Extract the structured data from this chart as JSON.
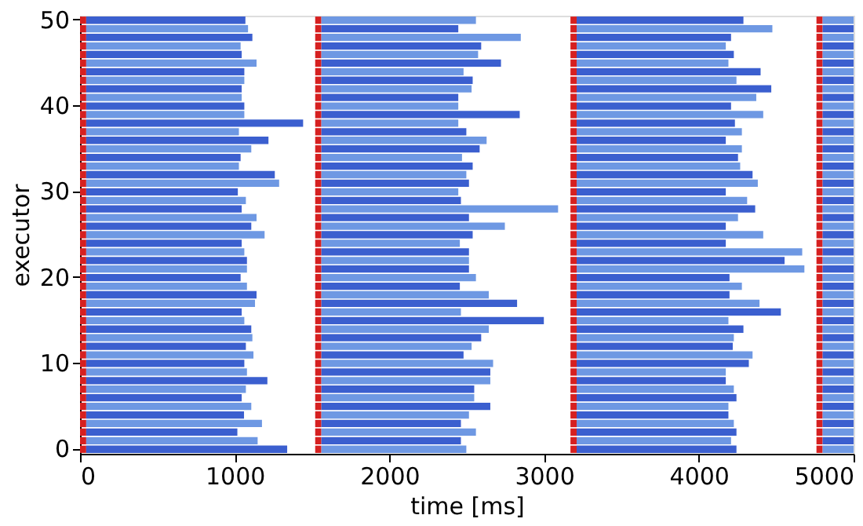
{
  "chart_data": {
    "type": "bar",
    "orientation": "horizontal",
    "xlabel": "time [ms]",
    "ylabel": "executor",
    "categories": [
      "50",
      null,
      null,
      null,
      null,
      null,
      null,
      null,
      null,
      null,
      "40",
      null,
      null,
      null,
      null,
      null,
      null,
      null,
      null,
      null,
      "30",
      null,
      null,
      null,
      null,
      null,
      null,
      null,
      null,
      null,
      "20",
      null,
      null,
      null,
      null,
      null,
      null,
      null,
      null,
      null,
      "10",
      null,
      null,
      null,
      null,
      null,
      null,
      null,
      null,
      null,
      "0"
    ],
    "xlim": [
      0,
      5000
    ],
    "xticks": [
      0,
      1000,
      2000,
      3000,
      4000,
      5000
    ],
    "series": [
      {
        "color": "#d62020",
        "base": [
          0,
          0,
          0,
          0,
          0,
          0,
          0,
          0,
          0,
          0,
          0,
          0,
          0,
          0,
          0,
          0,
          0,
          0,
          0,
          0,
          0,
          0,
          0,
          0,
          0,
          0,
          0,
          0,
          0,
          0,
          0,
          0,
          0,
          0,
          0,
          0,
          0,
          0,
          0,
          0,
          0,
          0,
          0,
          0,
          0,
          0,
          0,
          0,
          0,
          0,
          0
        ],
        "values": [
          40,
          40,
          40,
          40,
          40,
          40,
          40,
          40,
          40,
          40,
          40,
          40,
          40,
          40,
          40,
          40,
          40,
          40,
          40,
          40,
          40,
          40,
          40,
          40,
          40,
          40,
          40,
          40,
          40,
          40,
          40,
          40,
          40,
          40,
          40,
          40,
          40,
          40,
          40,
          40,
          40,
          40,
          40,
          40,
          40,
          40,
          40,
          40,
          40,
          40,
          40
        ]
      },
      {
        "colors": [
          "#3b5fcf",
          "#6e98e3",
          "#3b5fcf",
          "#6e98e3",
          "#3b5fcf",
          "#6e98e3",
          "#3b5fcf",
          "#6e98e3",
          "#3b5fcf",
          "#6e98e3",
          "#3b5fcf",
          "#6e98e3",
          "#3b5fcf",
          "#6e98e3",
          "#3b5fcf",
          "#6e98e3",
          "#3b5fcf",
          "#6e98e3",
          "#3b5fcf",
          "#6e98e3",
          "#3b5fcf",
          "#6e98e3",
          "#3b5fcf",
          "#6e98e3",
          "#3b5fcf",
          "#6e98e3",
          "#3b5fcf",
          "#6e98e3",
          "#3b5fcf",
          "#6e98e3",
          "#3b5fcf",
          "#6e98e3",
          "#3b5fcf",
          "#6e98e3",
          "#3b5fcf",
          "#6e98e3",
          "#3b5fcf",
          "#6e98e3",
          "#3b5fcf",
          "#6e98e3",
          "#3b5fcf",
          "#6e98e3",
          "#3b5fcf",
          "#6e98e3",
          "#3b5fcf",
          "#6e98e3",
          "#3b5fcf",
          "#6e98e3",
          "#3b5fcf",
          "#6e98e3",
          "#3b5fcf"
        ],
        "base": [
          40,
          40,
          40,
          40,
          40,
          40,
          40,
          40,
          40,
          40,
          40,
          40,
          40,
          40,
          40,
          40,
          40,
          40,
          40,
          40,
          40,
          40,
          40,
          40,
          40,
          40,
          40,
          40,
          40,
          40,
          40,
          40,
          40,
          40,
          40,
          40,
          40,
          40,
          40,
          40,
          40,
          40,
          40,
          40,
          40,
          40,
          40,
          40,
          40,
          40,
          40
        ],
        "values": [
          1029,
          1046,
          1074,
          998,
          1005,
          1101,
          1022,
          1022,
          1005,
          1005,
          1022,
          1022,
          1402,
          987,
          1178,
          1067,
          998,
          987,
          1219,
          1247,
          980,
          1032,
          1005,
          1101,
          1067,
          1153,
          1005,
          1022,
          1039,
          1039,
          998,
          1039,
          1101,
          1091,
          1005,
          1022,
          1067,
          1074,
          1032,
          1081,
          1022,
          1039,
          1171,
          1032,
          1005,
          1067,
          1020,
          1136,
          977,
          1108,
          1299
        ]
      },
      {
        "color": "#d62020",
        "base": [
          1520,
          1520,
          1520,
          1520,
          1520,
          1520,
          1520,
          1520,
          1520,
          1520,
          1520,
          1520,
          1520,
          1520,
          1520,
          1520,
          1520,
          1520,
          1520,
          1520,
          1520,
          1520,
          1520,
          1520,
          1520,
          1520,
          1520,
          1520,
          1520,
          1520,
          1520,
          1520,
          1520,
          1520,
          1520,
          1520,
          1520,
          1520,
          1520,
          1520,
          1520,
          1520,
          1520,
          1520,
          1520,
          1520,
          1520,
          1520,
          1520,
          1520,
          1520
        ],
        "values": [
          40,
          40,
          40,
          40,
          40,
          40,
          40,
          40,
          40,
          40,
          40,
          40,
          40,
          40,
          40,
          40,
          40,
          40,
          40,
          40,
          40,
          40,
          40,
          40,
          40,
          40,
          40,
          40,
          40,
          40,
          40,
          40,
          40,
          40,
          40,
          40,
          40,
          40,
          40,
          40,
          40,
          40,
          40,
          40,
          40,
          40,
          40,
          40,
          40,
          40,
          40
        ]
      },
      {
        "colors": [
          "#6e98e3",
          "#3b5fcf",
          "#6e98e3",
          "#3b5fcf",
          "#6e98e3",
          "#3b5fcf",
          "#6e98e3",
          "#3b5fcf",
          "#6e98e3",
          "#3b5fcf",
          "#6e98e3",
          "#3b5fcf",
          "#6e98e3",
          "#3b5fcf",
          "#6e98e3",
          "#3b5fcf",
          "#6e98e3",
          "#3b5fcf",
          "#6e98e3",
          "#3b5fcf",
          "#6e98e3",
          "#3b5fcf",
          "#6e98e3",
          "#3b5fcf",
          "#6e98e3",
          "#3b5fcf",
          "#6e98e3",
          "#3b5fcf",
          "#6e98e3",
          "#3b5fcf",
          "#6e98e3",
          "#3b5fcf",
          "#6e98e3",
          "#3b5fcf",
          "#6e98e3",
          "#3b5fcf",
          "#6e98e3",
          "#3b5fcf",
          "#6e98e3",
          "#3b5fcf",
          "#6e98e3",
          "#3b5fcf",
          "#6e98e3",
          "#3b5fcf",
          "#6e98e3",
          "#3b5fcf",
          "#6e98e3",
          "#3b5fcf",
          "#6e98e3",
          "#3b5fcf",
          "#6e98e3"
        ],
        "base": [
          1560,
          1560,
          1560,
          1560,
          1560,
          1560,
          1560,
          1560,
          1560,
          1560,
          1560,
          1560,
          1560,
          1560,
          1560,
          1560,
          1560,
          1560,
          1560,
          1560,
          1560,
          1560,
          1560,
          1560,
          1560,
          1560,
          1560,
          1560,
          1560,
          1560,
          1560,
          1560,
          1560,
          1560,
          1560,
          1560,
          1560,
          1560,
          1560,
          1560,
          1560,
          1560,
          1560,
          1560,
          1560,
          1560,
          1560,
          1560,
          1560,
          1560,
          1560
        ],
        "values": [
          999,
          885,
          1289,
          1033,
          1013,
          1161,
          919,
          978,
          971,
          885,
          885,
          1282,
          885,
          937,
          1068,
          1023,
          909,
          978,
          937,
          954,
          885,
          902,
          1530,
          954,
          1186,
          978,
          895,
          954,
          954,
          954,
          999,
          895,
          1082,
          1265,
          902,
          1438,
          1082,
          1033,
          971,
          919,
          1110,
          1092,
          1092,
          988,
          988,
          1092,
          954,
          902,
          999,
          902,
          937
        ]
      },
      {
        "color": "#d62020",
        "base": [
          3170,
          3170,
          3170,
          3170,
          3170,
          3170,
          3170,
          3170,
          3170,
          3170,
          3170,
          3170,
          3170,
          3170,
          3170,
          3170,
          3170,
          3170,
          3170,
          3170,
          3170,
          3170,
          3170,
          3170,
          3170,
          3170,
          3170,
          3170,
          3170,
          3170,
          3170,
          3170,
          3170,
          3170,
          3170,
          3170,
          3170,
          3170,
          3170,
          3170,
          3170,
          3170,
          3170,
          3170,
          3170,
          3170,
          3170,
          3170,
          3170,
          3170,
          3170
        ],
        "values": [
          40,
          40,
          40,
          40,
          40,
          40,
          40,
          40,
          40,
          40,
          40,
          40,
          40,
          40,
          40,
          40,
          40,
          40,
          40,
          40,
          40,
          40,
          40,
          40,
          40,
          40,
          40,
          40,
          40,
          40,
          40,
          40,
          40,
          40,
          40,
          40,
          40,
          40,
          40,
          40,
          40,
          40,
          40,
          40,
          40,
          40,
          40,
          40,
          40,
          40,
          40
        ]
      },
      {
        "colors": [
          "#3b5fcf",
          "#6e98e3",
          "#3b5fcf",
          "#6e98e3",
          "#3b5fcf",
          "#6e98e3",
          "#3b5fcf",
          "#6e98e3",
          "#3b5fcf",
          "#6e98e3",
          "#3b5fcf",
          "#6e98e3",
          "#3b5fcf",
          "#6e98e3",
          "#3b5fcf",
          "#6e98e3",
          "#3b5fcf",
          "#6e98e3",
          "#3b5fcf",
          "#6e98e3",
          "#3b5fcf",
          "#6e98e3",
          "#3b5fcf",
          "#6e98e3",
          "#3b5fcf",
          "#6e98e3",
          "#3b5fcf",
          "#6e98e3",
          "#3b5fcf",
          "#6e98e3",
          "#3b5fcf",
          "#6e98e3",
          "#3b5fcf",
          "#6e98e3",
          "#3b5fcf",
          "#6e98e3",
          "#3b5fcf",
          "#6e98e3",
          "#3b5fcf",
          "#6e98e3",
          "#3b5fcf",
          "#6e98e3",
          "#3b5fcf",
          "#6e98e3",
          "#3b5fcf",
          "#6e98e3",
          "#3b5fcf",
          "#6e98e3",
          "#3b5fcf",
          "#6e98e3",
          "#3b5fcf"
        ],
        "base": [
          3210,
          3210,
          3210,
          3210,
          3210,
          3210,
          3210,
          3210,
          3210,
          3210,
          3210,
          3210,
          3210,
          3210,
          3210,
          3210,
          3210,
          3210,
          3210,
          3210,
          3210,
          3210,
          3210,
          3210,
          3210,
          3210,
          3210,
          3210,
          3210,
          3210,
          3210,
          3210,
          3210,
          3210,
          3210,
          3210,
          3210,
          3210,
          3210,
          3210,
          3210,
          3210,
          3210,
          3210,
          3210,
          3210,
          3210,
          3210,
          3210,
          3210,
          3210
        ],
        "values": [
          1078,
          1265,
          998,
          964,
          1016,
          981,
          1189,
          1033,
          1258,
          1161,
          998,
          1206,
          1023,
          1068,
          964,
          1068,
          1043,
          1057,
          1137,
          1171,
          964,
          1102,
          1154,
          1043,
          964,
          1206,
          964,
          1458,
          1344,
          1472,
          988,
          1068,
          988,
          1182,
          1320,
          981,
          1078,
          1016,
          1009,
          1137,
          1113,
          964,
          964,
          1016,
          1033,
          981,
          981,
          1016,
          1033,
          998,
          1033
        ]
      },
      {
        "color": "#d62020",
        "base": [
          4760,
          4760,
          4760,
          4760,
          4760,
          4760,
          4760,
          4760,
          4760,
          4760,
          4760,
          4760,
          4760,
          4760,
          4760,
          4760,
          4760,
          4760,
          4760,
          4760,
          4760,
          4760,
          4760,
          4760,
          4760,
          4760,
          4760,
          4760,
          4760,
          4760,
          4760,
          4760,
          4760,
          4760,
          4760,
          4760,
          4760,
          4760,
          4760,
          4760,
          4760,
          4760,
          4760,
          4760,
          4760,
          4760,
          4760,
          4760,
          4760,
          4760,
          4760
        ],
        "values": [
          40,
          40,
          40,
          40,
          40,
          40,
          40,
          40,
          40,
          40,
          40,
          40,
          40,
          40,
          40,
          40,
          40,
          40,
          40,
          40,
          40,
          40,
          40,
          40,
          40,
          40,
          40,
          40,
          40,
          40,
          40,
          40,
          40,
          40,
          40,
          40,
          40,
          40,
          40,
          40,
          40,
          40,
          40,
          40,
          40,
          40,
          40,
          40,
          40,
          40,
          40
        ]
      },
      {
        "colors": [
          "#6e98e3",
          "#3b5fcf",
          "#6e98e3",
          "#3b5fcf",
          "#6e98e3",
          "#3b5fcf",
          "#6e98e3",
          "#3b5fcf",
          "#6e98e3",
          "#3b5fcf",
          "#6e98e3",
          "#3b5fcf",
          "#6e98e3",
          "#3b5fcf",
          "#6e98e3",
          "#3b5fcf",
          "#6e98e3",
          "#3b5fcf",
          "#6e98e3",
          "#3b5fcf",
          "#6e98e3",
          "#3b5fcf",
          "#6e98e3",
          "#3b5fcf",
          "#6e98e3",
          "#3b5fcf",
          "#6e98e3",
          "#3b5fcf",
          "#6e98e3",
          "#3b5fcf",
          "#6e98e3",
          "#3b5fcf",
          "#6e98e3",
          "#3b5fcf",
          "#6e98e3",
          "#3b5fcf",
          "#6e98e3",
          "#3b5fcf",
          "#6e98e3",
          "#3b5fcf",
          "#6e98e3",
          "#3b5fcf",
          "#6e98e3",
          "#3b5fcf",
          "#6e98e3",
          "#3b5fcf",
          "#6e98e3",
          "#3b5fcf",
          "#6e98e3",
          "#3b5fcf",
          "#6e98e3"
        ],
        "base": [
          4800,
          4800,
          4800,
          4800,
          4800,
          4800,
          4800,
          4800,
          4800,
          4800,
          4800,
          4800,
          4800,
          4800,
          4800,
          4800,
          4800,
          4800,
          4800,
          4800,
          4800,
          4800,
          4800,
          4800,
          4800,
          4800,
          4800,
          4800,
          4800,
          4800,
          4800,
          4800,
          4800,
          4800,
          4800,
          4800,
          4800,
          4800,
          4800,
          4800,
          4800,
          4800,
          4800,
          4800,
          4800,
          4800,
          4800,
          4800,
          4800,
          4800,
          4800
        ],
        "values": [
          200,
          200,
          200,
          200,
          200,
          200,
          200,
          200,
          200,
          200,
          200,
          200,
          200,
          200,
          200,
          200,
          200,
          200,
          200,
          200,
          200,
          200,
          200,
          200,
          200,
          200,
          200,
          200,
          200,
          200,
          200,
          200,
          200,
          200,
          200,
          200,
          200,
          200,
          200,
          200,
          200,
          200,
          200,
          200,
          200,
          200,
          200,
          200,
          200,
          200,
          200
        ]
      }
    ]
  }
}
